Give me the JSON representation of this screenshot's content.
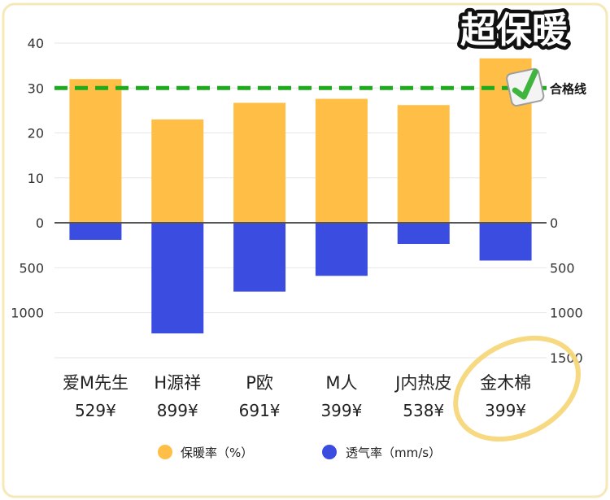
{
  "badge_title": "超保暖",
  "pass_line_label": "合格线",
  "colors": {
    "warmth": "#FFBF47",
    "breathability": "#3B4CE0",
    "pass_line": "#1DAA1D",
    "frame": "#F6E8B8",
    "axis": "#555555",
    "highlight_circle": "#F5D77A"
  },
  "chart_data": {
    "type": "bar",
    "categories": [
      "爱M先生",
      "H源祥",
      "P欧",
      "M人",
      "J内热皮",
      "金木棉"
    ],
    "prices": [
      "529¥",
      "899¥",
      "691¥",
      "399¥",
      "538¥",
      "399¥"
    ],
    "series": [
      {
        "name": "保暖率（%）",
        "color": "#FFBF47",
        "axis": "left",
        "values": [
          32,
          23,
          26.7,
          27.6,
          26.2,
          36.6
        ]
      },
      {
        "name": "透气率（mm/s）",
        "color": "#3B4CE0",
        "axis": "right",
        "values": [
          190,
          1230,
          765,
          590,
          235,
          420
        ]
      }
    ],
    "y_left": {
      "ticks": [
        "40",
        "30",
        "20",
        "10",
        "0"
      ],
      "range": [
        0,
        40
      ]
    },
    "y_right": {
      "ticks": [
        "0",
        "500",
        "1000",
        "1500"
      ],
      "range": [
        0,
        1500
      ],
      "direction": "downward"
    },
    "y_left_extra_ticks": [
      "500",
      "1000"
    ],
    "pass_line_value": 30,
    "highlighted_category": "金木棉",
    "legend_position": "bottom",
    "grid": true
  }
}
